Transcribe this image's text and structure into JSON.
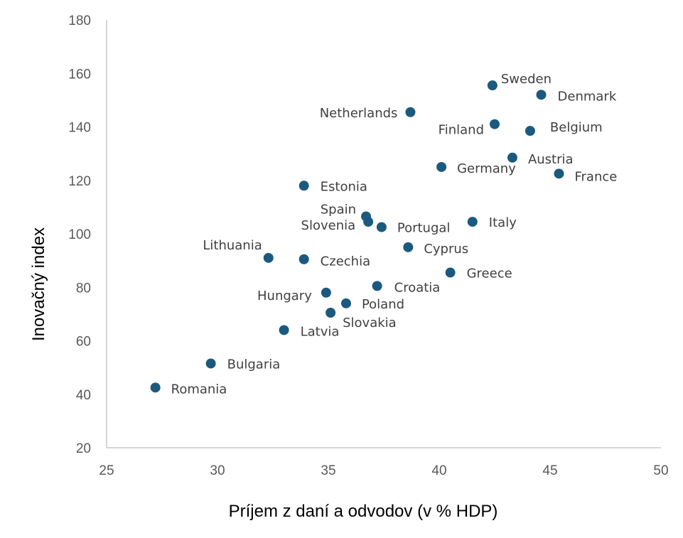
{
  "chart_data": {
    "type": "scatter",
    "title": "",
    "xlabel": "Príjem z daní a odvodov (v % HDP)",
    "ylabel": "Inovačný index",
    "xlim": [
      25,
      50
    ],
    "ylim": [
      20,
      180
    ],
    "xticks": [
      "25",
      "30",
      "35",
      "40",
      "45",
      "50"
    ],
    "yticks": [
      "20",
      "40",
      "60",
      "80",
      "100",
      "120",
      "140",
      "160",
      "180"
    ],
    "grid": false,
    "legend": "none",
    "marker_color": "#1b5a7e",
    "points": [
      {
        "label": "Sweden",
        "x": 42.4,
        "y": 155.5
      },
      {
        "label": "Denmark",
        "x": 44.6,
        "y": 152.0
      },
      {
        "label": "Netherlands",
        "x": 38.7,
        "y": 145.5
      },
      {
        "label": "Finland",
        "x": 42.5,
        "y": 141.0
      },
      {
        "label": "Belgium",
        "x": 44.1,
        "y": 138.5
      },
      {
        "label": "Austria",
        "x": 43.3,
        "y": 128.5
      },
      {
        "label": "Germany",
        "x": 40.1,
        "y": 125.0
      },
      {
        "label": "France",
        "x": 45.4,
        "y": 122.5
      },
      {
        "label": "Estonia",
        "x": 33.9,
        "y": 118.0
      },
      {
        "label": "Spain",
        "x": 36.7,
        "y": 106.5
      },
      {
        "label": "Slovenia",
        "x": 36.8,
        "y": 104.5
      },
      {
        "label": "Portugal",
        "x": 37.4,
        "y": 102.5
      },
      {
        "label": "Italy",
        "x": 41.5,
        "y": 104.5
      },
      {
        "label": "Lithuania",
        "x": 32.3,
        "y": 91.0
      },
      {
        "label": "Czechia",
        "x": 33.9,
        "y": 90.5
      },
      {
        "label": "Cyprus",
        "x": 38.6,
        "y": 95.0
      },
      {
        "label": "Greece",
        "x": 40.5,
        "y": 85.5
      },
      {
        "label": "Hungary",
        "x": 34.9,
        "y": 78.0
      },
      {
        "label": "Croatia",
        "x": 37.2,
        "y": 80.5
      },
      {
        "label": "Poland",
        "x": 35.8,
        "y": 74.0
      },
      {
        "label": "Slovakia",
        "x": 35.1,
        "y": 70.5
      },
      {
        "label": "Latvia",
        "x": 33.0,
        "y": 64.0
      },
      {
        "label": "Bulgaria",
        "x": 29.7,
        "y": 51.5
      },
      {
        "label": "Romania",
        "x": 27.2,
        "y": 42.5
      }
    ]
  }
}
